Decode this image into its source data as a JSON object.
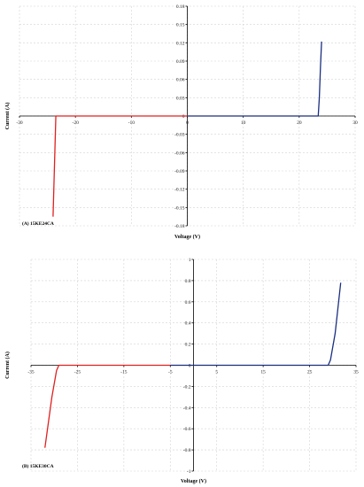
{
  "chart_data": [
    {
      "type": "line",
      "panel_label": "(A) 15KE24CA",
      "xlabel": "Voltage (V)",
      "ylabel": "Current (A)",
      "xlim": [
        -30,
        30
      ],
      "ylim": [
        -0.18,
        0.18
      ],
      "x_ticks": [
        -30,
        -20,
        -10,
        0,
        10,
        20,
        30
      ],
      "y_ticks": [
        0.18,
        0.15,
        0.12,
        0.09,
        0.06,
        0.03,
        0,
        -0.03,
        -0.06,
        -0.09,
        -0.12,
        -0.15,
        -0.18
      ],
      "x_tick_labels": [
        "-30",
        "-20",
        "-10",
        "0",
        "10",
        "20",
        "30"
      ],
      "y_tick_labels": [
        "0.18",
        "0.15",
        "0.12",
        "0.09",
        "0.06",
        "0.03",
        "0",
        "-0.03",
        "-0.06",
        "-0.09",
        "-0.12",
        "-0.15",
        "-0.18"
      ],
      "grid": true,
      "series": [
        {
          "color": "#e02020",
          "points": [
            [
              -24,
              -0.165
            ],
            [
              -23.5,
              0
            ],
            [
              0,
              0
            ]
          ]
        },
        {
          "color": "#1a2f80",
          "points": [
            [
              0,
              0
            ],
            [
              23.4,
              0
            ],
            [
              23.6,
              0.03
            ],
            [
              23.8,
              0.08
            ],
            [
              24,
              0.122
            ]
          ]
        }
      ]
    },
    {
      "type": "line",
      "panel_label": "(B) 15KE30CA",
      "xlabel": "Voltage (V)",
      "ylabel": "Current (A)",
      "xlim": [
        -35,
        35
      ],
      "ylim": [
        -1,
        1
      ],
      "x_ticks": [
        -35,
        -25,
        -15,
        -5,
        5,
        15,
        25,
        35
      ],
      "y_ticks": [
        1,
        0.8,
        0.6,
        0.4,
        0.2,
        0,
        -0.2,
        -0.4,
        -0.6,
        -0.8,
        -1
      ],
      "x_tick_labels": [
        "-35",
        "-25",
        "-15",
        "-5",
        "5",
        "15",
        "25",
        "35"
      ],
      "y_tick_labels": [
        "1",
        "0.8",
        "0.6",
        "0.4",
        "0.2",
        "0",
        "-0.2",
        "-0.4",
        "-0.6",
        "-0.8",
        "-1"
      ],
      "grid": true,
      "series": [
        {
          "color": "#e02020",
          "points": [
            [
              -32,
              -0.78
            ],
            [
              -30.5,
              -0.3
            ],
            [
              -29.5,
              -0.05
            ],
            [
              -29,
              0
            ],
            [
              -5,
              0
            ]
          ]
        },
        {
          "color": "#1a2f80",
          "points": [
            [
              -5,
              0
            ],
            [
              29,
              0
            ],
            [
              29.5,
              0.05
            ],
            [
              30.5,
              0.3
            ],
            [
              31.7,
              0.78
            ]
          ]
        }
      ]
    }
  ]
}
